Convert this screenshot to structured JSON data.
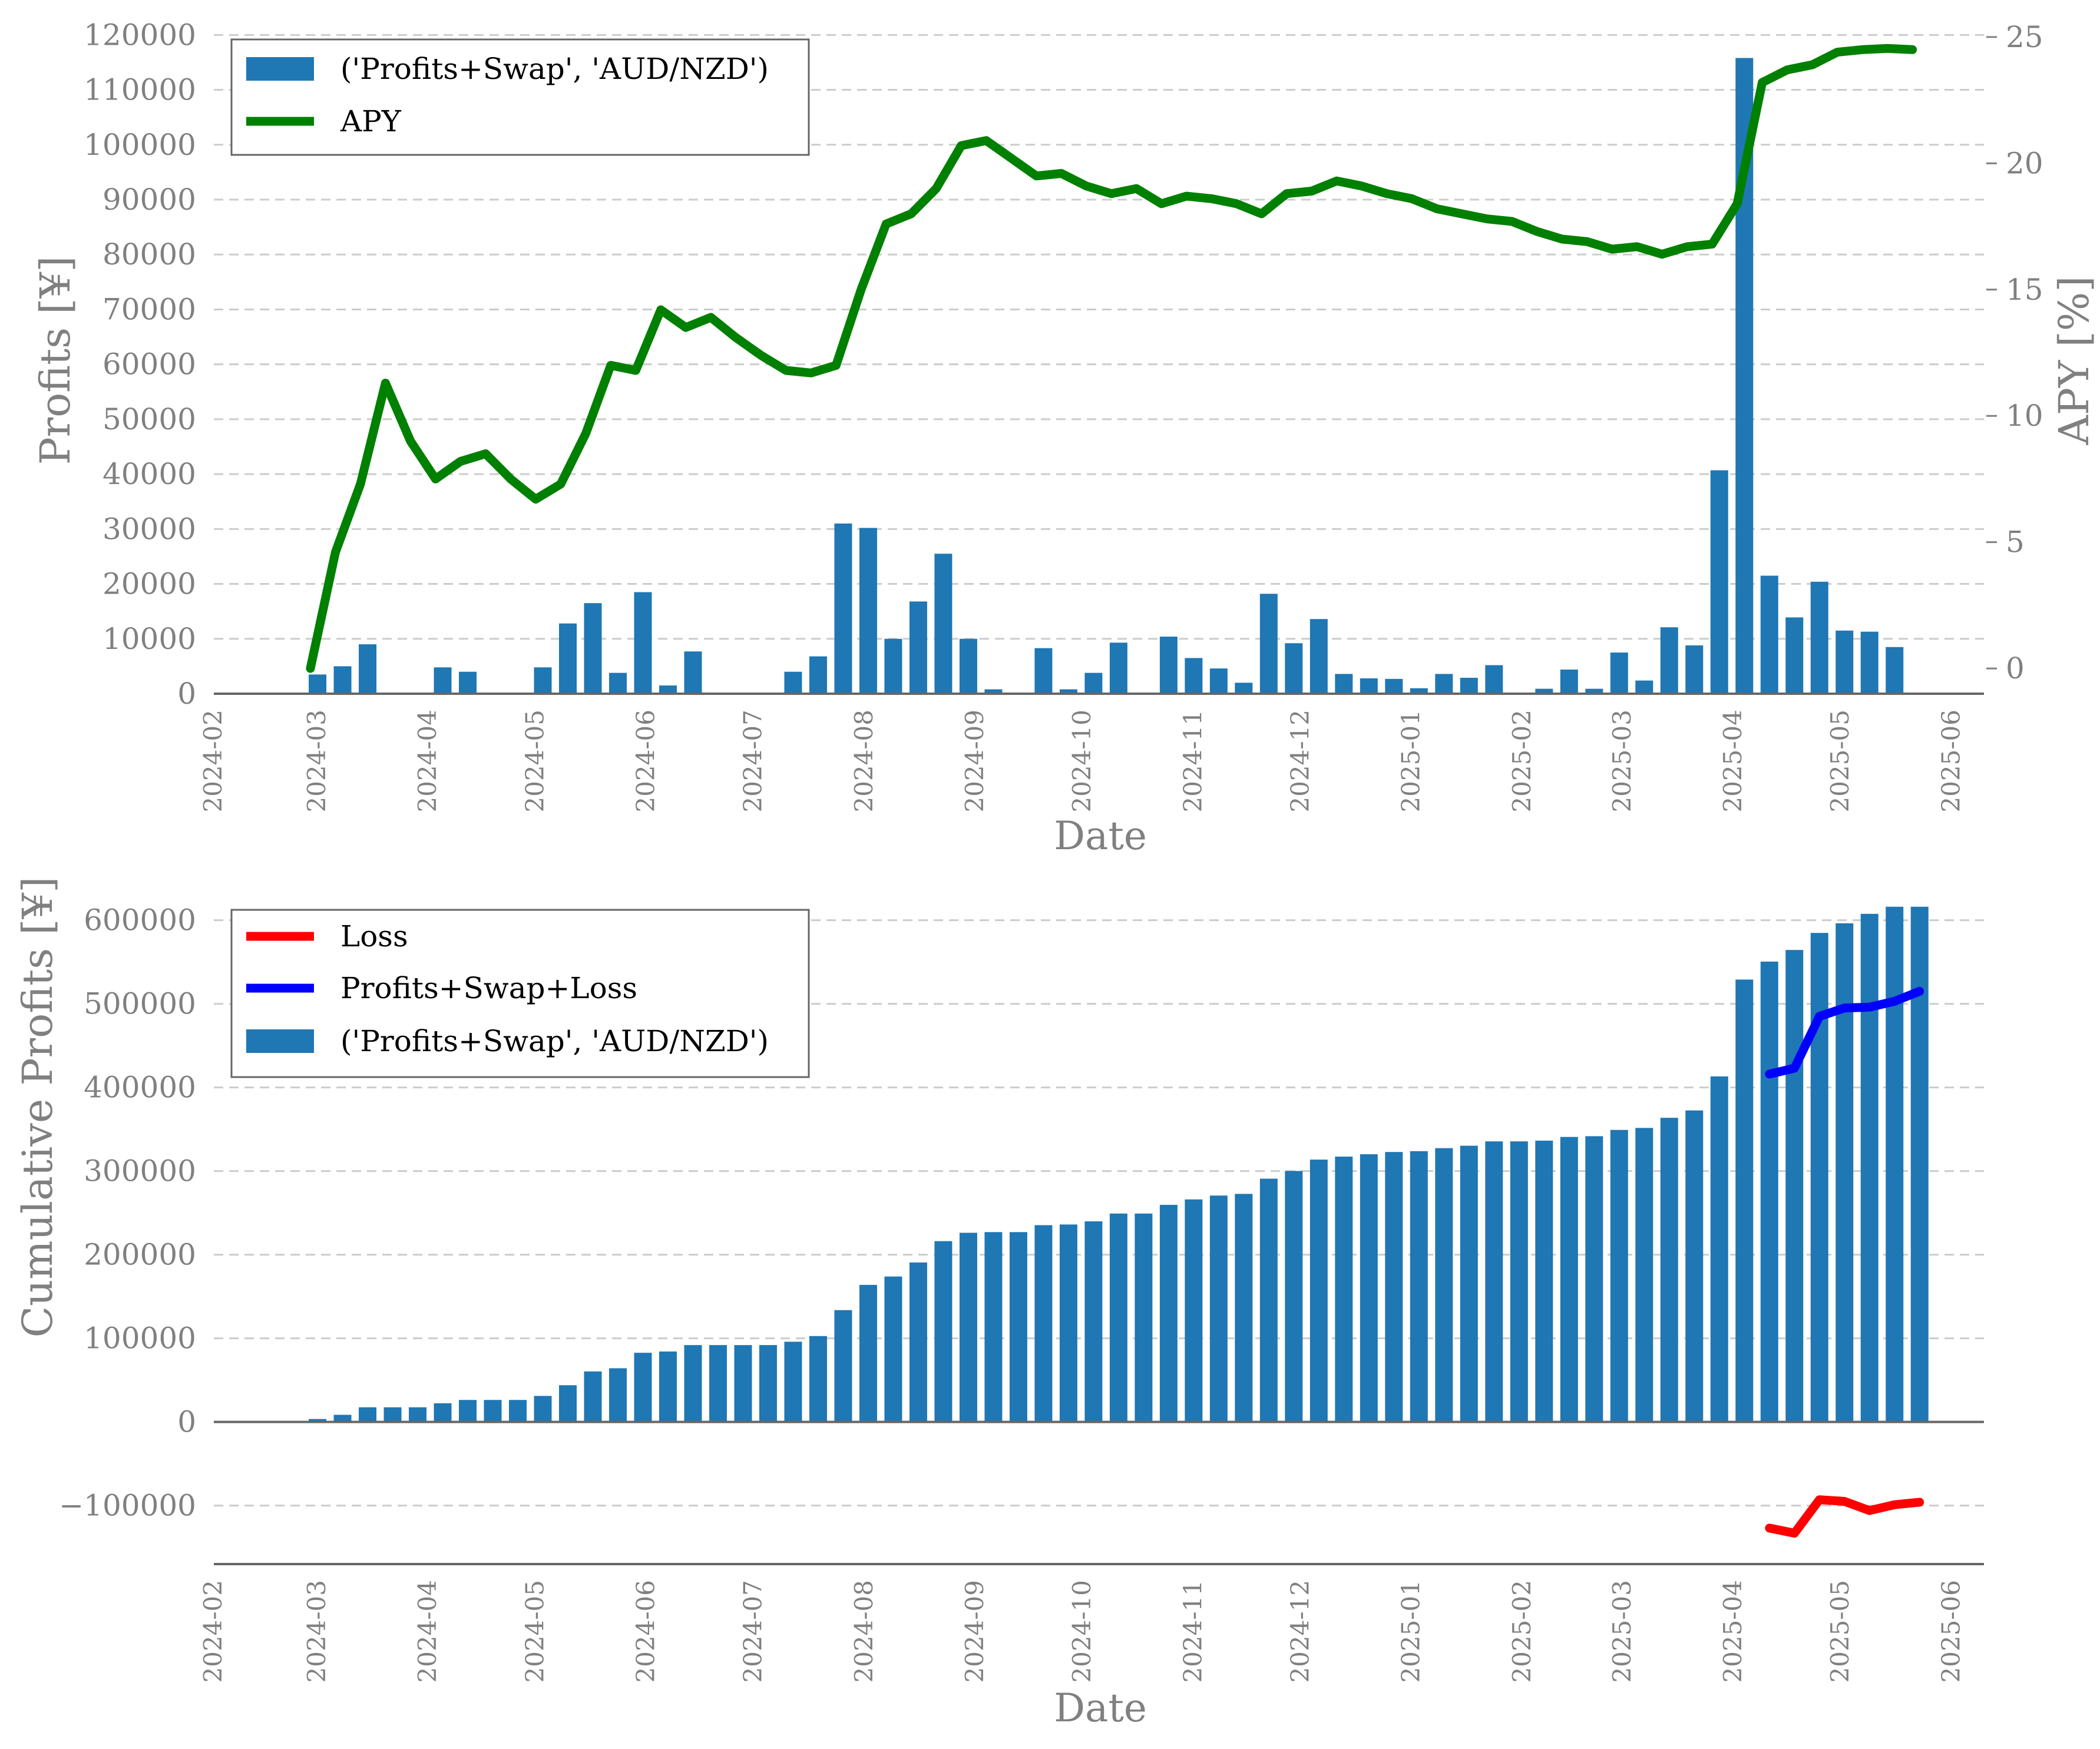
{
  "colors": {
    "bar": "#1f77b4",
    "apy": "#008000",
    "loss": "#ff0000",
    "profits_swap_loss": "#0000ff",
    "text": "#808080",
    "grid": "#cccccc",
    "axis": "#666666"
  },
  "chart_data": [
    {
      "type": "bar+line",
      "title": "",
      "xlabel": "Date",
      "ylabel": "Profits [¥]",
      "y2label": "APY [%]",
      "ylim": [
        0,
        121000
      ],
      "y2lim": [
        -1,
        25.3
      ],
      "xlim": [
        "2024-02-01",
        "2025-06-10"
      ],
      "grid": true,
      "legend_position": "upper left",
      "x_tick_labels": [
        "2024-02",
        "2024-03",
        "2024-04",
        "2024-05",
        "2024-06",
        "2024-07",
        "2024-08",
        "2024-09",
        "2024-10",
        "2024-11",
        "2024-12",
        "2025-01",
        "2025-02",
        "2025-03",
        "2025-04",
        "2025-05",
        "2025-06"
      ],
      "y_tick_labels": [
        "0",
        "10000",
        "20000",
        "30000",
        "40000",
        "50000",
        "60000",
        "70000",
        "80000",
        "90000",
        "100000",
        "110000",
        "120000"
      ],
      "y2_tick_labels": [
        "0",
        "5",
        "10",
        "15",
        "20",
        "25"
      ],
      "legend": [
        {
          "label": "('Profits+Swap', 'AUD/NZD')",
          "kind": "patch",
          "color": "#1f77b4"
        },
        {
          "label": "APY",
          "kind": "line",
          "color": "#008000"
        }
      ],
      "bars": {
        "name": "('Profits+Swap', 'AUD/NZD')",
        "dates": [
          "2024-03-01",
          "2024-03-08",
          "2024-03-15",
          "2024-03-22",
          "2024-03-29",
          "2024-04-05",
          "2024-04-12",
          "2024-04-19",
          "2024-04-26",
          "2024-05-03",
          "2024-05-10",
          "2024-05-17",
          "2024-05-24",
          "2024-05-31",
          "2024-06-07",
          "2024-06-14",
          "2024-06-21",
          "2024-06-28",
          "2024-07-05",
          "2024-07-12",
          "2024-07-19",
          "2024-07-26",
          "2024-08-02",
          "2024-08-09",
          "2024-08-16",
          "2024-08-23",
          "2024-08-30",
          "2024-09-06",
          "2024-09-13",
          "2024-09-20",
          "2024-09-27",
          "2024-10-04",
          "2024-10-11",
          "2024-10-18",
          "2024-10-25",
          "2024-11-01",
          "2024-11-08",
          "2024-11-15",
          "2024-11-22",
          "2024-11-29",
          "2024-12-06",
          "2024-12-13",
          "2024-12-20",
          "2024-12-27",
          "2025-01-03",
          "2025-01-10",
          "2025-01-17",
          "2025-01-24",
          "2025-01-31",
          "2025-02-07",
          "2025-02-14",
          "2025-02-21",
          "2025-02-28",
          "2025-03-07",
          "2025-03-14",
          "2025-03-21",
          "2025-03-28",
          "2025-04-04",
          "2025-04-11",
          "2025-04-18",
          "2025-04-25",
          "2025-05-02",
          "2025-05-09",
          "2025-05-16",
          "2025-05-23"
        ],
        "values": [
          3500,
          5000,
          9000,
          0,
          0,
          4800,
          4000,
          0,
          0,
          4800,
          12800,
          16500,
          3800,
          18500,
          1500,
          7700,
          0,
          0,
          0,
          4000,
          6800,
          31000,
          30200,
          10000,
          16800,
          25500,
          10000,
          800,
          0,
          8300,
          800,
          3800,
          9300,
          0,
          10400,
          6500,
          4600,
          2000,
          18200,
          9200,
          13600,
          3600,
          2800,
          2700,
          1000,
          3600,
          2900,
          5200,
          0,
          900,
          4400,
          900,
          7500,
          2400,
          12100,
          8800,
          40700,
          115800,
          21500,
          13900,
          20400,
          11500,
          11300,
          8500,
          0
        ]
      },
      "apy_line": {
        "name": "APY",
        "dates": [
          "2024-02-28",
          "2024-03-06",
          "2024-03-13",
          "2024-03-20",
          "2024-03-27",
          "2024-04-03",
          "2024-04-10",
          "2024-04-17",
          "2024-04-24",
          "2024-05-01",
          "2024-05-08",
          "2024-05-15",
          "2024-05-22",
          "2024-05-29",
          "2024-06-05",
          "2024-06-12",
          "2024-06-19",
          "2024-06-26",
          "2024-07-03",
          "2024-07-10",
          "2024-07-17",
          "2024-07-24",
          "2024-07-31",
          "2024-08-07",
          "2024-08-14",
          "2024-08-21",
          "2024-08-28",
          "2024-09-04",
          "2024-09-11",
          "2024-09-18",
          "2024-09-25",
          "2024-10-02",
          "2024-10-09",
          "2024-10-16",
          "2024-10-23",
          "2024-10-30",
          "2024-11-06",
          "2024-11-13",
          "2024-11-20",
          "2024-11-27",
          "2024-12-04",
          "2024-12-11",
          "2024-12-18",
          "2024-12-25",
          "2025-01-01",
          "2025-01-08",
          "2025-01-15",
          "2025-01-22",
          "2025-01-29",
          "2025-02-05",
          "2025-02-12",
          "2025-02-19",
          "2025-02-26",
          "2025-03-05",
          "2025-03-12",
          "2025-03-19",
          "2025-03-26",
          "2025-04-02",
          "2025-04-09",
          "2025-04-16",
          "2025-04-23",
          "2025-04-30",
          "2025-05-07",
          "2025-05-14",
          "2025-05-21"
        ],
        "values": [
          0,
          4.6,
          7.3,
          11.3,
          9.0,
          7.5,
          8.2,
          8.5,
          7.5,
          6.7,
          7.3,
          9.3,
          12.0,
          11.8,
          14.2,
          13.5,
          13.9,
          13.1,
          12.4,
          11.8,
          11.7,
          12.0,
          15.0,
          17.6,
          18.0,
          19.0,
          20.7,
          20.9,
          20.2,
          19.5,
          19.6,
          19.1,
          18.8,
          19.0,
          18.4,
          18.7,
          18.6,
          18.4,
          18.0,
          18.8,
          18.9,
          19.3,
          19.1,
          18.8,
          18.6,
          18.2,
          18.0,
          17.8,
          17.7,
          17.3,
          17.0,
          16.9,
          16.6,
          16.7,
          16.4,
          16.7,
          16.8,
          18.4,
          23.2,
          23.7,
          23.9,
          24.4,
          24.5,
          24.55,
          24.5
        ]
      }
    },
    {
      "type": "bar+line",
      "title": "",
      "xlabel": "Date",
      "ylabel": "Cumulative Profits [¥]",
      "ylim": [
        -170000,
        630000
      ],
      "xlim": [
        "2024-02-01",
        "2025-06-10"
      ],
      "grid": true,
      "legend_position": "upper left",
      "x_tick_labels": [
        "2024-02",
        "2024-03",
        "2024-04",
        "2024-05",
        "2024-06",
        "2024-07",
        "2024-08",
        "2024-09",
        "2024-10",
        "2024-11",
        "2024-12",
        "2025-01",
        "2025-02",
        "2025-03",
        "2025-04",
        "2025-05",
        "2025-06"
      ],
      "y_tick_labels": [
        "−100000",
        "0",
        "100000",
        "200000",
        "300000",
        "400000",
        "500000",
        "600000"
      ],
      "legend": [
        {
          "label": "Loss",
          "kind": "line",
          "color": "#ff0000"
        },
        {
          "label": "Profits+Swap+Loss",
          "kind": "line",
          "color": "#0000ff"
        },
        {
          "label": "('Profits+Swap', 'AUD/NZD')",
          "kind": "patch",
          "color": "#1f77b4"
        }
      ],
      "bars": {
        "name": "('Profits+Swap', 'AUD/NZD')",
        "dates": [
          "2024-03-01",
          "2024-03-08",
          "2024-03-15",
          "2024-03-22",
          "2024-03-29",
          "2024-04-05",
          "2024-04-12",
          "2024-04-19",
          "2024-04-26",
          "2024-05-03",
          "2024-05-10",
          "2024-05-17",
          "2024-05-24",
          "2024-05-31",
          "2024-06-07",
          "2024-06-14",
          "2024-06-21",
          "2024-06-28",
          "2024-07-05",
          "2024-07-12",
          "2024-07-19",
          "2024-07-26",
          "2024-08-02",
          "2024-08-09",
          "2024-08-16",
          "2024-08-23",
          "2024-08-30",
          "2024-09-06",
          "2024-09-13",
          "2024-09-20",
          "2024-09-27",
          "2024-10-04",
          "2024-10-11",
          "2024-10-18",
          "2024-10-25",
          "2024-11-01",
          "2024-11-08",
          "2024-11-15",
          "2024-11-22",
          "2024-11-29",
          "2024-12-06",
          "2024-12-13",
          "2024-12-20",
          "2024-12-27",
          "2025-01-03",
          "2025-01-10",
          "2025-01-17",
          "2025-01-24",
          "2025-01-31",
          "2025-02-07",
          "2025-02-14",
          "2025-02-21",
          "2025-02-28",
          "2025-03-07",
          "2025-03-14",
          "2025-03-21",
          "2025-03-28",
          "2025-04-04",
          "2025-04-11",
          "2025-04-18",
          "2025-04-25",
          "2025-05-02",
          "2025-05-09",
          "2025-05-16",
          "2025-05-23"
        ],
        "values": [
          3500,
          8500,
          17500,
          17500,
          17500,
          22300,
          26300,
          26300,
          26300,
          31100,
          43900,
          60400,
          64200,
          82700,
          84200,
          91900,
          91900,
          91900,
          91900,
          95900,
          102700,
          133700,
          163900,
          173900,
          190700,
          216200,
          226200,
          227000,
          227000,
          235300,
          236100,
          239900,
          249200,
          249200,
          259600,
          266100,
          270700,
          272700,
          290900,
          300100,
          313700,
          317300,
          320100,
          322800,
          323800,
          327400,
          330300,
          335500,
          335500,
          336400,
          340800,
          341700,
          349200,
          351600,
          363700,
          372500,
          413200,
          529000,
          550500,
          564400,
          584800,
          596300,
          607600,
          616100,
          616100
        ]
      },
      "lines": [
        {
          "name": "Loss",
          "dates": [
            "2025-04-11",
            "2025-04-18",
            "2025-04-25",
            "2025-05-02",
            "2025-05-09",
            "2025-05-16",
            "2025-05-23"
          ],
          "values": [
            -127000,
            -133000,
            -93000,
            -95000,
            -106000,
            -99000,
            -96000
          ]
        },
        {
          "name": "Profits+Swap+Loss",
          "dates": [
            "2025-04-11",
            "2025-04-18",
            "2025-04-25",
            "2025-05-02",
            "2025-05-09",
            "2025-05-16",
            "2025-05-23"
          ],
          "values": [
            416000,
            423000,
            485000,
            495000,
            496000,
            503000,
            515000
          ]
        }
      ]
    }
  ]
}
